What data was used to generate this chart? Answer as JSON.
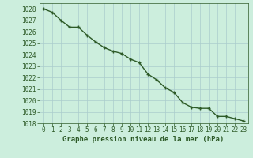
{
  "x": [
    0,
    1,
    2,
    3,
    4,
    5,
    6,
    7,
    8,
    9,
    10,
    11,
    12,
    13,
    14,
    15,
    16,
    17,
    18,
    19,
    20,
    21,
    22,
    23
  ],
  "y": [
    1028.0,
    1027.7,
    1027.0,
    1026.4,
    1026.4,
    1025.7,
    1025.1,
    1024.6,
    1024.3,
    1024.1,
    1023.6,
    1023.3,
    1022.3,
    1021.8,
    1021.1,
    1020.7,
    1019.8,
    1019.4,
    1019.3,
    1019.3,
    1018.6,
    1018.6,
    1018.4,
    1018.2
  ],
  "ylim": [
    1018,
    1028.5
  ],
  "yticks": [
    1018,
    1019,
    1020,
    1021,
    1022,
    1023,
    1024,
    1025,
    1026,
    1027,
    1028
  ],
  "xticks": [
    0,
    1,
    2,
    3,
    4,
    5,
    6,
    7,
    8,
    9,
    10,
    11,
    12,
    13,
    14,
    15,
    16,
    17,
    18,
    19,
    20,
    21,
    22,
    23
  ],
  "xlabel": "Graphe pression niveau de la mer (hPa)",
  "line_color": "#2d5a27",
  "marker": "+",
  "marker_color": "#2d5a27",
  "bg_color": "#cceedd",
  "grid_color": "#aacccc",
  "tick_label_fontsize": 5.5,
  "xlabel_fontsize": 6.5,
  "linewidth": 1.0,
  "markersize": 3.5
}
